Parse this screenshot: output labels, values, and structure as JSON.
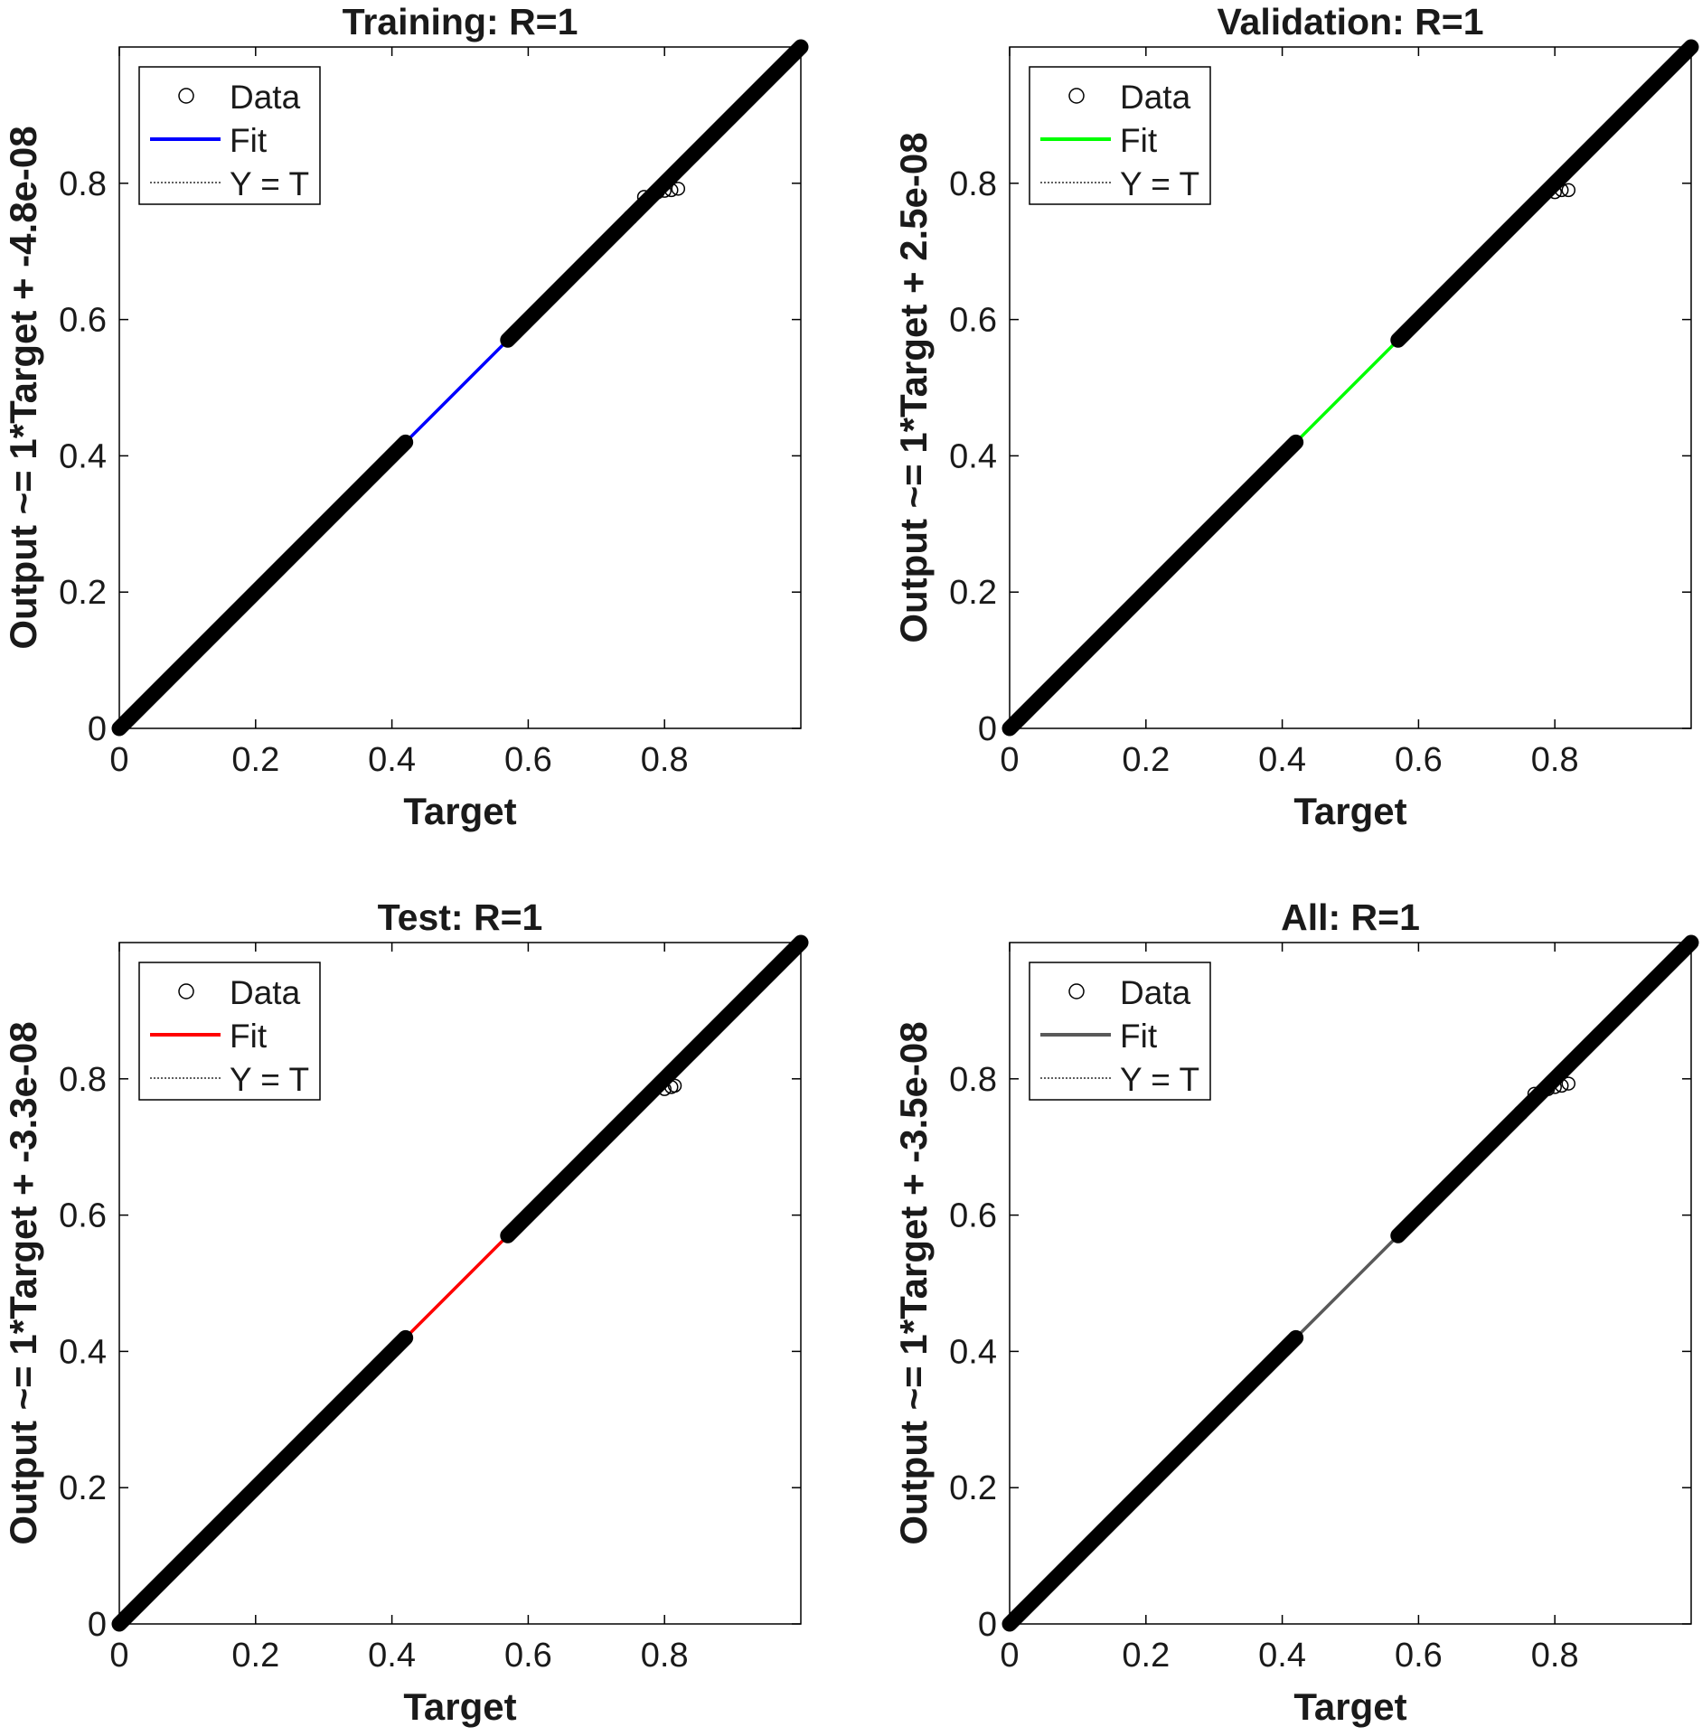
{
  "figure": {
    "background": "#ffffff",
    "axis_color": "#000000"
  },
  "chart_data": [
    {
      "type": "scatter",
      "title": "Training: R=1",
      "xlabel": "Target",
      "ylabel": "Output ~= 1*Target + -4.8e-08",
      "xlim": [
        0,
        1
      ],
      "ylim": [
        0,
        1
      ],
      "xticks": [
        0,
        0.2,
        0.4,
        0.6,
        0.8
      ],
      "yticks": [
        0,
        0.2,
        0.4,
        0.6,
        0.8
      ],
      "grid": false,
      "legend": {
        "placement": "top-left",
        "entries": [
          "Data",
          "Fit",
          "Y = T"
        ]
      },
      "fit_color": "#0000ff",
      "fit_line": {
        "slope": 1,
        "intercept": -4.8e-08
      },
      "data_segments": [
        [
          0,
          0.42
        ],
        [
          0.57,
          0.75
        ],
        [
          0.75,
          1.0
        ]
      ],
      "outliers": [
        [
          0.77,
          0.78
        ],
        [
          0.79,
          0.787
        ],
        [
          0.8,
          0.789
        ],
        [
          0.81,
          0.79
        ],
        [
          0.82,
          0.792
        ]
      ]
    },
    {
      "type": "scatter",
      "title": "Validation: R=1",
      "xlabel": "Target",
      "ylabel": "Output ~= 1*Target + 2.5e-08",
      "xlim": [
        0,
        1
      ],
      "ylim": [
        0,
        1
      ],
      "xticks": [
        0,
        0.2,
        0.4,
        0.6,
        0.8
      ],
      "yticks": [
        0,
        0.2,
        0.4,
        0.6,
        0.8
      ],
      "grid": false,
      "legend": {
        "placement": "top-left",
        "entries": [
          "Data",
          "Fit",
          "Y = T"
        ]
      },
      "fit_color": "#00ff00",
      "fit_line": {
        "slope": 1,
        "intercept": 2.5e-08
      },
      "data_segments": [
        [
          0,
          0.42
        ],
        [
          0.57,
          1.0
        ]
      ],
      "outliers": [
        [
          0.8,
          0.787
        ],
        [
          0.81,
          0.79
        ],
        [
          0.82,
          0.79
        ]
      ]
    },
    {
      "type": "scatter",
      "title": "Test: R=1",
      "xlabel": "Target",
      "ylabel": "Output ~= 1*Target + -3.3e-08",
      "xlim": [
        0,
        1
      ],
      "ylim": [
        0,
        1
      ],
      "xticks": [
        0,
        0.2,
        0.4,
        0.6,
        0.8
      ],
      "yticks": [
        0,
        0.2,
        0.4,
        0.6,
        0.8
      ],
      "grid": false,
      "legend": {
        "placement": "top-left",
        "entries": [
          "Data",
          "Fit",
          "Y = T"
        ]
      },
      "fit_color": "#ff0000",
      "fit_line": {
        "slope": 1,
        "intercept": -3.3e-08
      },
      "data_segments": [
        [
          0,
          0.42
        ],
        [
          0.57,
          1.0
        ]
      ],
      "outliers": [
        [
          0.8,
          0.785
        ],
        [
          0.81,
          0.788
        ],
        [
          0.815,
          0.79
        ]
      ]
    },
    {
      "type": "scatter",
      "title": "All: R=1",
      "xlabel": "Target",
      "ylabel": "Output ~= 1*Target + -3.5e-08",
      "xlim": [
        0,
        1
      ],
      "ylim": [
        0,
        1
      ],
      "xticks": [
        0,
        0.2,
        0.4,
        0.6,
        0.8
      ],
      "yticks": [
        0,
        0.2,
        0.4,
        0.6,
        0.8
      ],
      "grid": false,
      "legend": {
        "placement": "top-left",
        "entries": [
          "Data",
          "Fit",
          "Y = T"
        ]
      },
      "fit_color": "#595959",
      "fit_line": {
        "slope": 1,
        "intercept": -3.5e-08
      },
      "data_segments": [
        [
          0,
          0.42
        ],
        [
          0.57,
          0.75
        ],
        [
          0.75,
          1.0
        ]
      ],
      "outliers": [
        [
          0.77,
          0.778
        ],
        [
          0.79,
          0.785
        ],
        [
          0.8,
          0.788
        ],
        [
          0.81,
          0.79
        ],
        [
          0.82,
          0.793
        ]
      ]
    }
  ]
}
